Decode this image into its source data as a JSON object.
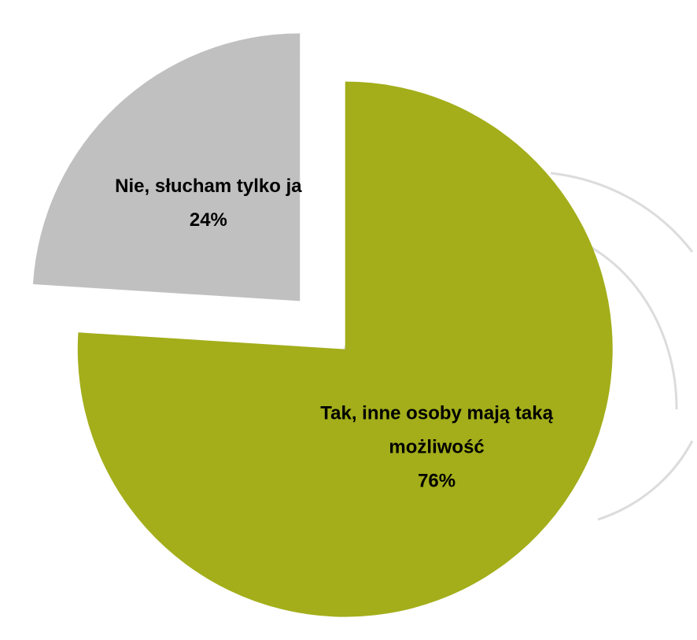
{
  "chart_data": {
    "type": "pie",
    "categories": [
      "Tak, inne osoby mają taką możliwość",
      "Nie, słucham tylko ja"
    ],
    "values": [
      76,
      24
    ],
    "value_labels": [
      "76%",
      "24%"
    ],
    "colors": [
      "#a3ae1a",
      "#c0c0c0"
    ],
    "exploded": true
  }
}
